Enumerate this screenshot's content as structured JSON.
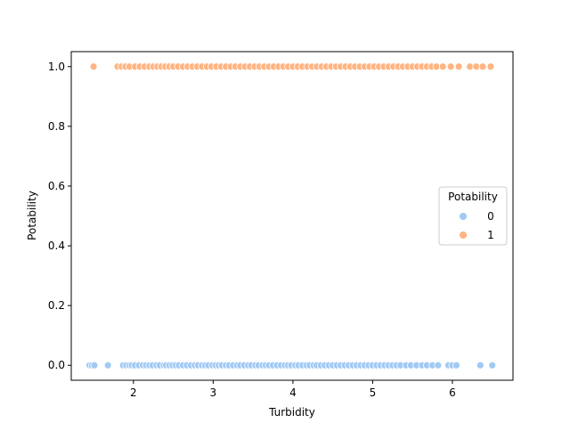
{
  "chart_data": {
    "type": "scatter",
    "xlabel": "Turbidity",
    "ylabel": "Potability",
    "xlim": [
      1.22,
      6.76
    ],
    "ylim": [
      -0.05,
      1.05
    ],
    "x_ticks": [
      2,
      3,
      4,
      5,
      6
    ],
    "y_ticks": [
      0.0,
      0.2,
      0.4,
      0.6,
      0.8,
      1.0
    ],
    "x_tick_labels": [
      "2",
      "3",
      "4",
      "5",
      "6"
    ],
    "y_tick_labels": [
      "0.0",
      "0.2",
      "0.4",
      "0.6",
      "0.8",
      "1.0"
    ],
    "grid": false,
    "legend": {
      "title": "Potability",
      "placement": "center-right",
      "entries": [
        "0",
        "1"
      ]
    },
    "series": [
      {
        "name": "0",
        "color": "#a1c9f4",
        "y": 0,
        "x": [
          1.45,
          1.48,
          1.51,
          1.68,
          1.87,
          1.91,
          1.95,
          1.98,
          2.02,
          2.07,
          2.12,
          2.16,
          2.2,
          2.24,
          2.29,
          2.33,
          2.38,
          2.41,
          2.45,
          2.49,
          2.53,
          2.57,
          2.62,
          2.67,
          2.72,
          2.77,
          2.81,
          2.86,
          2.9,
          2.94,
          2.99,
          3.03,
          3.07,
          3.11,
          3.16,
          3.2,
          3.25,
          3.3,
          3.34,
          3.39,
          3.44,
          3.48,
          3.53,
          3.57,
          3.62,
          3.66,
          3.7,
          3.75,
          3.8,
          3.85,
          3.9,
          3.94,
          3.98,
          4.03,
          4.07,
          4.12,
          4.17,
          4.21,
          4.26,
          4.3,
          4.35,
          4.4,
          4.45,
          4.5,
          4.55,
          4.6,
          4.65,
          4.7,
          4.75,
          4.8,
          4.85,
          4.9,
          4.95,
          5.0,
          5.05,
          5.1,
          5.15,
          5.2,
          5.25,
          5.3,
          5.35,
          5.42,
          5.48,
          5.55,
          5.62,
          5.68,
          5.75,
          5.82,
          5.95,
          6.0,
          6.05,
          6.35,
          6.5
        ]
      },
      {
        "name": "1",
        "color": "#ffb482",
        "y": 1,
        "x": [
          1.5,
          1.8,
          1.85,
          1.9,
          1.95,
          2.02,
          2.08,
          2.14,
          2.2,
          2.25,
          2.3,
          2.35,
          2.4,
          2.45,
          2.5,
          2.56,
          2.62,
          2.68,
          2.74,
          2.8,
          2.86,
          2.92,
          2.98,
          3.04,
          3.1,
          3.16,
          3.22,
          3.28,
          3.34,
          3.4,
          3.46,
          3.52,
          3.58,
          3.64,
          3.7,
          3.76,
          3.82,
          3.88,
          3.94,
          4.0,
          4.06,
          4.12,
          4.18,
          4.24,
          4.3,
          4.36,
          4.42,
          4.48,
          4.54,
          4.6,
          4.66,
          4.72,
          4.78,
          4.84,
          4.9,
          4.96,
          5.02,
          5.08,
          5.14,
          5.2,
          5.26,
          5.32,
          5.38,
          5.44,
          5.5,
          5.56,
          5.62,
          5.68,
          5.74,
          5.8,
          5.88,
          5.98,
          6.08,
          6.22,
          6.3,
          6.38,
          6.48
        ]
      }
    ]
  }
}
